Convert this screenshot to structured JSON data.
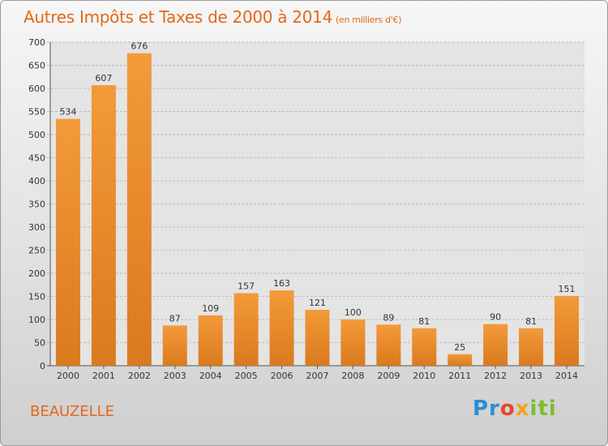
{
  "title": {
    "main": "Autres Impôts et Taxes de 2000 à 2014",
    "unit": "(en milliers d'€)"
  },
  "commune": "BEAUZELLE",
  "logo": {
    "p1": "Pr",
    "p2": "o",
    "p3": "x",
    "p4": "iti"
  },
  "colors": {
    "bar": "#f39a3a",
    "bar_dark": "#d97a1e",
    "accent": "#e06a1a"
  },
  "chart_data": {
    "type": "bar",
    "title": "Autres Impôts et Taxes de 2000 à 2014",
    "subtitle": "(en milliers d'€)",
    "categories": [
      "2000",
      "2001",
      "2002",
      "2003",
      "2004",
      "2005",
      "2006",
      "2007",
      "2008",
      "2009",
      "2010",
      "2011",
      "2012",
      "2013",
      "2014"
    ],
    "values": [
      534,
      607,
      676,
      87,
      109,
      157,
      163,
      121,
      100,
      89,
      81,
      25,
      90,
      81,
      151
    ],
    "ylim": [
      0,
      700
    ],
    "yticks": [
      0,
      50,
      100,
      150,
      200,
      250,
      300,
      350,
      400,
      450,
      500,
      550,
      600,
      650,
      700
    ],
    "grid": true,
    "legend": "none"
  }
}
